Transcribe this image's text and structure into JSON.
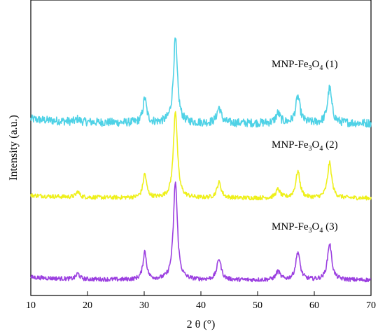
{
  "chart_data": {
    "type": "line",
    "title": "",
    "xlabel": "2 θ (°)",
    "ylabel": "Intensity (a.u.)",
    "xlim": [
      10,
      70
    ],
    "xticks": [
      10,
      20,
      30,
      40,
      50,
      60,
      70
    ],
    "y_ticks_shown": false,
    "grid": false,
    "legend": "none",
    "peaks_2theta": [
      18.3,
      30.1,
      35.5,
      43.2,
      53.6,
      57.1,
      62.7
    ],
    "series": [
      {
        "name": "MNP-Fe3O4 (1)",
        "label_main": "MNP-Fe",
        "label_sub1": "3",
        "label_mid": "O",
        "label_sub2": "4",
        "label_tail": " (1)",
        "color": "#4fd2e6",
        "baseline": 0.0,
        "peak_heights": [
          4,
          35,
          120,
          22,
          14,
          38,
          50
        ]
      },
      {
        "name": "MNP-Fe3O4 (2)",
        "label_main": "MNP-Fe",
        "label_sub1": "3",
        "label_mid": "O",
        "label_sub2": "4",
        "label_tail": " (2)",
        "color": "#eef01a",
        "baseline": 0.0,
        "peak_heights": [
          8,
          34,
          125,
          22,
          12,
          38,
          50
        ]
      },
      {
        "name": "MNP-Fe3O4 (3)",
        "label_main": "MNP-Fe",
        "label_sub1": "3",
        "label_mid": "O",
        "label_sub2": "4",
        "label_tail": " (3)",
        "color": "#9b3fe0",
        "baseline": 0.0,
        "peak_heights": [
          8,
          40,
          140,
          30,
          12,
          40,
          52
        ]
      }
    ]
  }
}
